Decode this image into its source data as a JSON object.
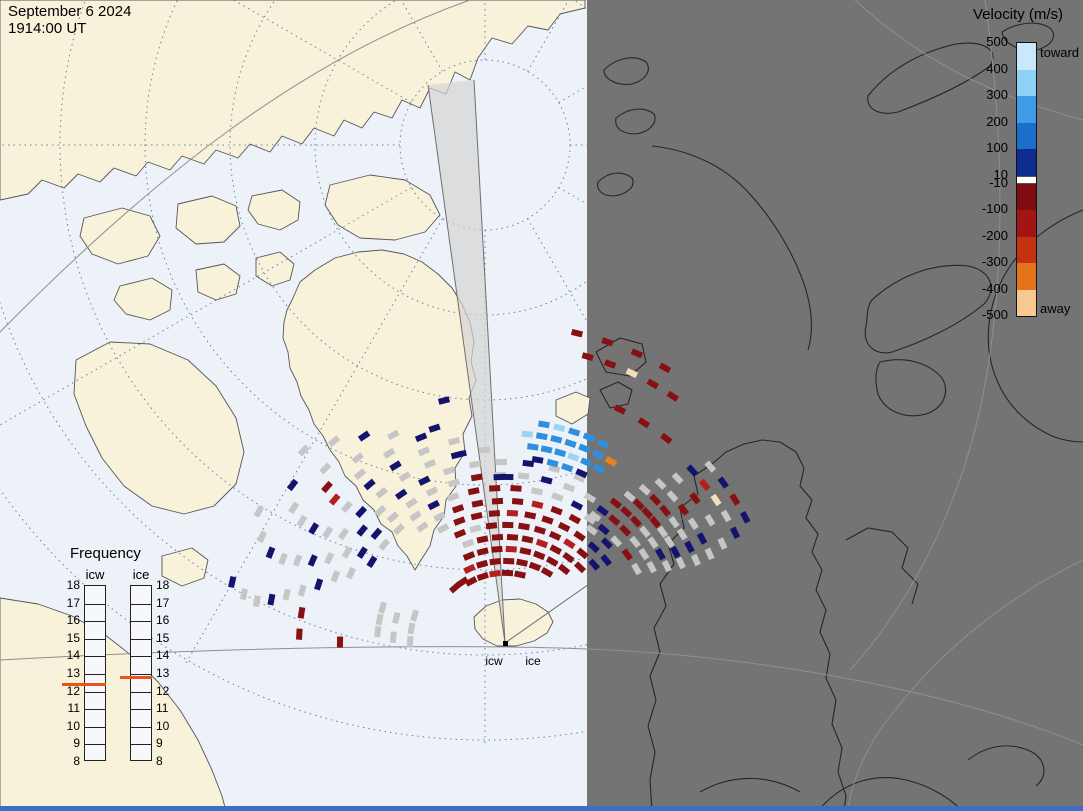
{
  "header": {
    "date": "September 6 2024",
    "time": "1914:00 UT"
  },
  "velocity_legend": {
    "title": "Velocity (m/s)",
    "toward": "toward",
    "away": "away",
    "ticks": [
      "500",
      "400",
      "300",
      "200",
      "100",
      "10",
      "-10",
      "-100",
      "-200",
      "-300",
      "-400",
      "-500"
    ],
    "segments": [
      "#c9e9fb",
      "#8fd0f5",
      "#3f9ce6",
      "#1b6ecc",
      "#0e2d8f",
      "#7e0c10",
      "#a31515",
      "#c53211",
      "#e4731c",
      "#f8c98f"
    ]
  },
  "frequency_legend": {
    "title": "Frequency",
    "columns": [
      {
        "label": "icw",
        "marker_value": 12.4
      },
      {
        "label": "ice",
        "marker_value": 12.8
      }
    ],
    "ticks": [
      "18",
      "17",
      "16",
      "15",
      "14",
      "13",
      "12",
      "11",
      "10",
      "9",
      "8"
    ],
    "marker_color": "#e8541c"
  },
  "radar": {
    "labels": [
      "icw",
      "ice"
    ]
  },
  "map_colors": {
    "day_ocean": "#edf1f8",
    "day_land": "#f7f2d9",
    "night": "#747474",
    "coast_day": "#55555a",
    "coast_night": "#262626",
    "grid_dotted": "#4f6f96",
    "grid_solid": "#8f8f8f",
    "bottom_frame": "#3c6ec2"
  },
  "scatter": {
    "center": [
      505,
      645
    ],
    "cell": [
      11,
      6
    ],
    "palette": {
      "gy": "#c6c6c6",
      "db": "#14146e",
      "b": "#2e8fe0",
      "lb": "#9ed4f2",
      "dr": "#871012",
      "r": "#b42020",
      "o": "#e8831e",
      "cr": "#f3ddba"
    },
    "bands": [
      {
        "r": 72,
        "a0": 118,
        "a1": 78,
        "c": "dr dr r dr dr"
      },
      {
        "r": 84,
        "a0": 115,
        "a1": 60,
        "c": "r dr dr dr dr dr dr"
      },
      {
        "r": 96,
        "a0": 112,
        "a1": 52,
        "c": "dr dr dr r dr dr dr dr"
      },
      {
        "r": 108,
        "a0": 110,
        "a1": 46,
        "c": "gy dr dr dr dr r dr dr dr"
      },
      {
        "r": 120,
        "a0": 112,
        "a1": 42,
        "c": "dr gy dr dr dr dr dr r dr db"
      },
      {
        "r": 132,
        "a0": 118,
        "a1": 40,
        "c": "gy dr dr dr r dr dr dr dr db db"
      },
      {
        "r": 144,
        "a0": 125,
        "a1": 45,
        "c": "gy gy dr dr dr dr r dr dr gy db"
      },
      {
        "r": 157,
        "a0": 148,
        "a1": 55,
        "c": "db gy gy gy db gy dr dr dr gy gy db gy"
      },
      {
        "r": 170,
        "a0": 155,
        "a1": 60,
        "c": "gy db db gy gy gy gy dr gy gy db gy gy"
      },
      {
        "r": 183,
        "a0": 158,
        "a1": 66,
        "c": "gy gy db gy db db gy gy gy db gy gy"
      },
      {
        "r": 196,
        "a0": 162,
        "a1": 96,
        "c": "db gy gy db gy gy gy db gy"
      },
      {
        "r": 210,
        "a0": 165,
        "a1": 104,
        "c": "gy db gy gy db db gy gy"
      },
      {
        "r": 224,
        "a0": 167,
        "a1": 112,
        "c": "gy gy db r gy gy db"
      },
      {
        "r": 238,
        "a0": 169,
        "a1": 118,
        "c": "db gy gy dr gy gy"
      },
      {
        "r": 252,
        "a0": 170,
        "a1": 124,
        "c": "gy db gy gy db"
      },
      {
        "r": 266,
        "a0": 169,
        "a1": 130,
        "c": "gy gy db gy"
      },
      {
        "r": 280,
        "a0": 167,
        "a1": 136,
        "c": "db gy gy"
      },
      {
        "r": 152,
        "a0": 56,
        "a1": 30,
        "c": "gy db gy dr gy"
      },
      {
        "r": 166,
        "a0": 54,
        "a1": 28,
        "c": "db dr dr gy gy gy"
      },
      {
        "r": 180,
        "a0": 52,
        "a1": 26,
        "c": "dr dr dr gy gy db gy"
      },
      {
        "r": 194,
        "a0": 50,
        "a1": 25,
        "c": "gy dr dr dr gy gy db gy"
      },
      {
        "r": 209,
        "a0": 48,
        "a1": 24,
        "c": "gy dr dr gy gy db gy"
      },
      {
        "r": 224,
        "a0": 46,
        "a1": 24,
        "c": "gy gy dr gy db gy"
      },
      {
        "r": 240,
        "a0": 44,
        "a1": 25,
        "c": "gy dr gy gy"
      },
      {
        "r": 256,
        "a0": 43,
        "a1": 26,
        "c": "db r cr gy db"
      },
      {
        "r": 272,
        "a0": 41,
        "a1": 28,
        "c": "gy db dr db"
      },
      {
        "r": 188,
        "a0": 80,
        "a1": 66,
        "c": "db b b db"
      },
      {
        "r": 200,
        "a0": 82,
        "a1": 62,
        "c": "b b b lb b b"
      },
      {
        "r": 212,
        "a0": 84,
        "a1": 60,
        "c": "lb b b b b b o"
      },
      {
        "r": 224,
        "a0": 80,
        "a1": 64,
        "c": "b lb b b b"
      },
      {
        "r": 262,
        "a0": 64,
        "a1": 52,
        "c": "dr dr dr"
      },
      {
        "r": 300,
        "a0": 74,
        "a1": 56,
        "c": "dr dr cr dr dr"
      },
      {
        "r": 320,
        "a0": 77,
        "a1": 60,
        "c": "dr dr dr dr"
      },
      {
        "r": 206,
        "a0": 177,
        "a1": 171,
        "c": "dr dr"
      },
      {
        "r": 165,
        "a0": 179,
        "a1": 175,
        "c": "dr"
      },
      {
        "r": 95,
        "a0": 178,
        "a1": 162,
        "c": "gy gy gy"
      },
      {
        "r": 112,
        "a0": 176,
        "a1": 166,
        "c": "gy gy"
      },
      {
        "r": 128,
        "a0": 174,
        "a1": 163,
        "c": "gy gy gy"
      },
      {
        "r": 76,
        "a0": 131,
        "a1": 124,
        "c": "dr dr"
      },
      {
        "r": 228,
        "a0": 108,
        "a1": 105,
        "c": "db"
      },
      {
        "r": 196,
        "a0": 103,
        "a1": 100,
        "c": "db"
      },
      {
        "r": 252,
        "a0": 104,
        "a1": 102,
        "c": "db"
      },
      {
        "r": 168,
        "a0": 92,
        "a1": 89,
        "c": "db db"
      }
    ]
  }
}
